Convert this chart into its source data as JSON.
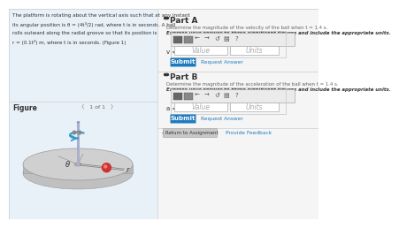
{
  "left_bg": "#e8f0f8",
  "right_bg": "#f5f5f5",
  "page_bg": "#ffffff",
  "problem_text": [
    "The platform is rotating about the vertical axis such that at any instant",
    "its angular position is θ = (4t³/2) rad, where t is in seconds. A ball",
    "rolls outward along the radial groove so that its position is",
    "r = (0.1t³) m, where t is in seconds. (Figure 1)"
  ],
  "figure_label": "Figure",
  "nav_text": "〈   1 of 1   〉",
  "part_a_title": "Part A",
  "part_a_desc": "Determine the magnitude of the velocity of the ball when t = 1.4 s.",
  "part_a_express": "Express your answer to three significant figures and include the appropriate units.",
  "part_a_var": "v =",
  "part_b_title": "Part B",
  "part_b_desc": "Determine the magnitude of the acceleration of the ball when t = 1.4 s.",
  "part_b_express": "Express your answer to three significant figures and include the appropriate units.",
  "part_b_var": "a =",
  "value_text": "Value",
  "units_text": "Units",
  "submit_text": "Submit",
  "request_text": "Request Answer",
  "return_text": "‹ Return to Assignment",
  "feedback_text": "Provide Feedback",
  "submit_color": "#1f7bbf",
  "link_color": "#1f7bbf",
  "divider_color": "#d0d0d0",
  "header_divider": "#cccccc",
  "bullet_color": "#333333",
  "text_dark": "#333333",
  "text_gray": "#666666",
  "input_border": "#aaaaaa",
  "toolbar_bg": "#e0e0e0",
  "toolbar_dark": "#888888",
  "return_btn_bg": "#c8c8c8",
  "panel_border": "#c0c8d8"
}
